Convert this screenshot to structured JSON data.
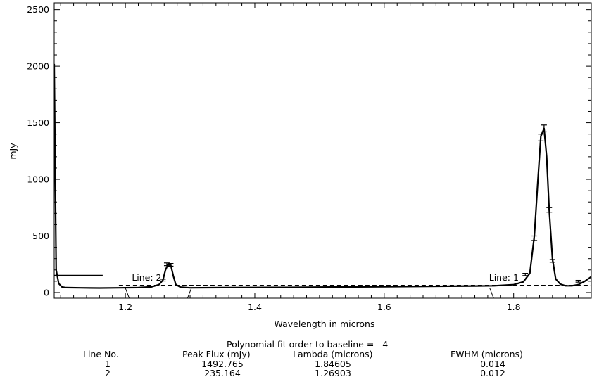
{
  "chart_data": {
    "type": "line",
    "xlabel": "Wavelength in microns",
    "ylabel": "mJy",
    "xlim": [
      1.09,
      1.92
    ],
    "ylim": [
      -50,
      2560
    ],
    "x_ticks": [
      "1.2",
      "1.4",
      "1.6",
      "1.8"
    ],
    "x_tick_values": [
      1.2,
      1.4,
      1.6,
      1.8
    ],
    "y_ticks": [
      "0",
      "500",
      "1000",
      "1500",
      "2000",
      "2500"
    ],
    "y_tick_values": [
      0,
      500,
      1000,
      1500,
      2000,
      2500
    ],
    "series": [
      {
        "x": [
          1.09,
          1.093,
          1.097,
          1.102,
          1.108,
          1.13,
          1.16,
          1.19,
          1.22,
          1.24,
          1.252,
          1.258,
          1.262,
          1.266,
          1.27,
          1.274,
          1.278,
          1.285,
          1.3,
          1.35,
          1.4,
          1.45,
          1.5,
          1.55,
          1.6,
          1.65,
          1.7,
          1.74,
          1.77,
          1.8,
          1.815,
          1.825,
          1.832,
          1.837,
          1.842,
          1.847,
          1.851,
          1.855,
          1.86,
          1.865,
          1.872,
          1.88,
          1.89,
          1.9,
          1.91,
          1.92
        ],
        "y": [
          2020,
          200,
          80,
          50,
          44,
          42,
          40,
          42,
          44,
          50,
          70,
          110,
          200,
          250,
          245,
          150,
          70,
          48,
          42,
          44,
          45,
          46,
          48,
          50,
          52,
          54,
          56,
          58,
          60,
          70,
          95,
          170,
          500,
          950,
          1380,
          1450,
          1200,
          730,
          300,
          120,
          75,
          60,
          60,
          70,
          100,
          140
        ]
      },
      {
        "x": [
          1.09,
          1.2,
          1.206,
          1.296,
          1.302,
          1.763,
          1.769,
          1.92
        ],
        "y": [
          40,
          40,
          -50,
          -50,
          40,
          40,
          -50,
          -50
        ]
      },
      {
        "x": [
          1.09,
          1.165
        ],
        "y": [
          150,
          150
        ]
      },
      {
        "x": [
          1.19,
          1.92
        ],
        "y": [
          65,
          65
        ]
      }
    ],
    "error_bars": [
      {
        "x": 1.258,
        "y": 110,
        "err": 8
      },
      {
        "x": 1.264,
        "y": 250,
        "err": 12
      },
      {
        "x": 1.27,
        "y": 245,
        "err": 12
      },
      {
        "x": 1.818,
        "y": 160,
        "err": 10
      },
      {
        "x": 1.832,
        "y": 480,
        "err": 20
      },
      {
        "x": 1.842,
        "y": 1370,
        "err": 30
      },
      {
        "x": 1.847,
        "y": 1450,
        "err": 30
      },
      {
        "x": 1.855,
        "y": 730,
        "err": 20
      },
      {
        "x": 1.86,
        "y": 280,
        "err": 12
      },
      {
        "x": 1.9,
        "y": 100,
        "err": 8
      }
    ],
    "annotations": [
      {
        "text": "Line: 2",
        "x": 1.21,
        "y": 105
      },
      {
        "text": "Line: 1",
        "x": 1.762,
        "y": 105
      }
    ]
  },
  "fit_table": {
    "title": "Polynomial fit order to baseline =   4",
    "headers": [
      "Line No.",
      "Peak Flux (mJy)",
      "Lambda (microns)",
      "FWHM (microns)"
    ],
    "rows": [
      [
        "1",
        "1492.765",
        "1.84605",
        "0.014"
      ],
      [
        "2",
        "235.164",
        "1.26903",
        "0.012"
      ]
    ]
  }
}
